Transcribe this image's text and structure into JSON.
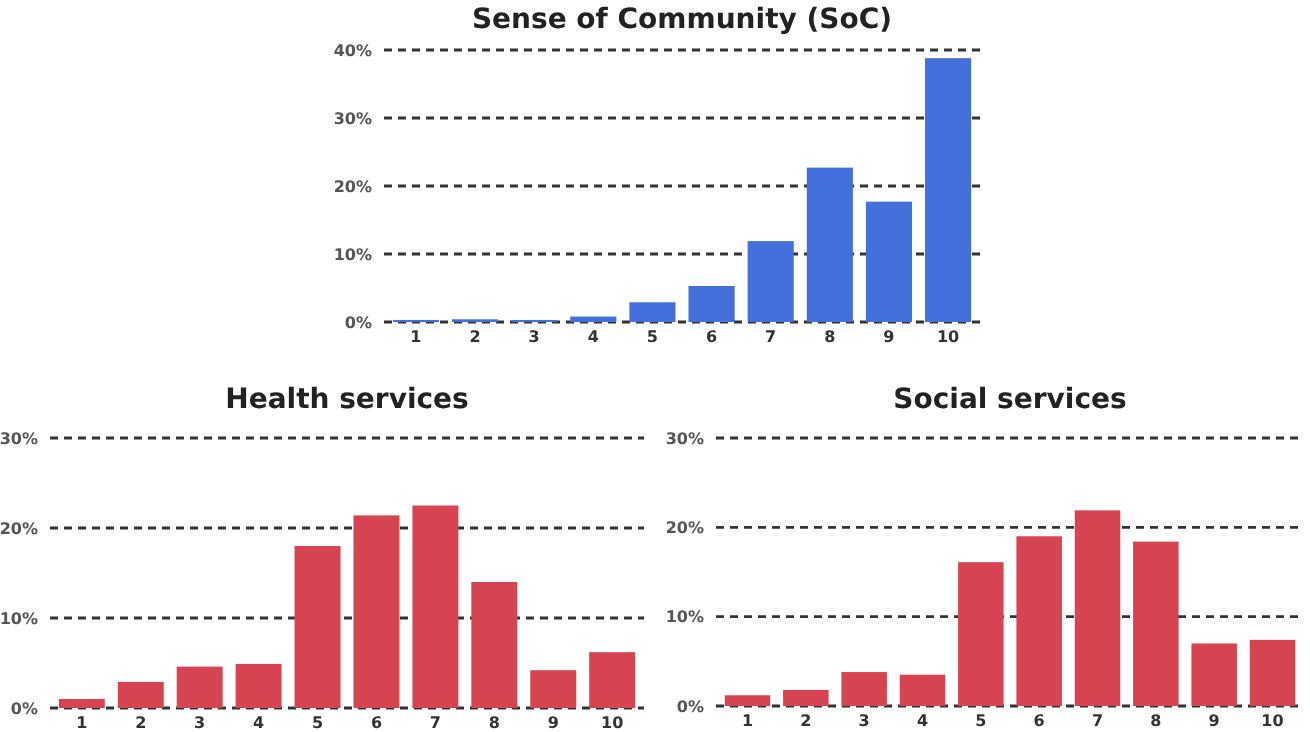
{
  "chart_data": [
    {
      "type": "bar",
      "title": "Sense of Community (SoC)",
      "categories": [
        "1",
        "2",
        "3",
        "4",
        "5",
        "6",
        "7",
        "8",
        "9",
        "10"
      ],
      "values": [
        0.3,
        0.4,
        0.3,
        0.8,
        2.9,
        5.3,
        11.9,
        22.7,
        17.7,
        38.8
      ],
      "color": "#4470db",
      "ylim": [
        0,
        40
      ],
      "yticks": [
        {
          "value": 0,
          "label": "0%"
        },
        {
          "value": 10,
          "label": "10%"
        },
        {
          "value": 20,
          "label": "20%"
        },
        {
          "value": 30,
          "label": "30%"
        },
        {
          "value": 40,
          "label": "40%"
        }
      ],
      "grid": "y"
    },
    {
      "type": "bar",
      "title": "Health services",
      "categories": [
        "1",
        "2",
        "3",
        "4",
        "5",
        "6",
        "7",
        "8",
        "9",
        "10"
      ],
      "values": [
        1.0,
        2.9,
        4.6,
        4.9,
        18.0,
        21.4,
        22.5,
        14.0,
        4.2,
        6.2
      ],
      "color": "#d64451",
      "ylim": [
        0,
        30
      ],
      "yticks": [
        {
          "value": 0,
          "label": "0%"
        },
        {
          "value": 10,
          "label": "10%"
        },
        {
          "value": 20,
          "label": "20%"
        },
        {
          "value": 30,
          "label": "30%"
        }
      ],
      "grid": "y"
    },
    {
      "type": "bar",
      "title": "Social services",
      "categories": [
        "1",
        "2",
        "3",
        "4",
        "5",
        "6",
        "7",
        "8",
        "9",
        "10"
      ],
      "values": [
        1.2,
        1.8,
        3.8,
        3.5,
        16.1,
        19.0,
        21.9,
        18.4,
        7.0,
        7.4
      ],
      "color": "#d64451",
      "ylim": [
        0,
        30
      ],
      "yticks": [
        {
          "value": 0,
          "label": "0%"
        },
        {
          "value": 10,
          "label": "10%"
        },
        {
          "value": 20,
          "label": "20%"
        },
        {
          "value": 30,
          "label": "30%"
        }
      ],
      "grid": "y"
    }
  ]
}
